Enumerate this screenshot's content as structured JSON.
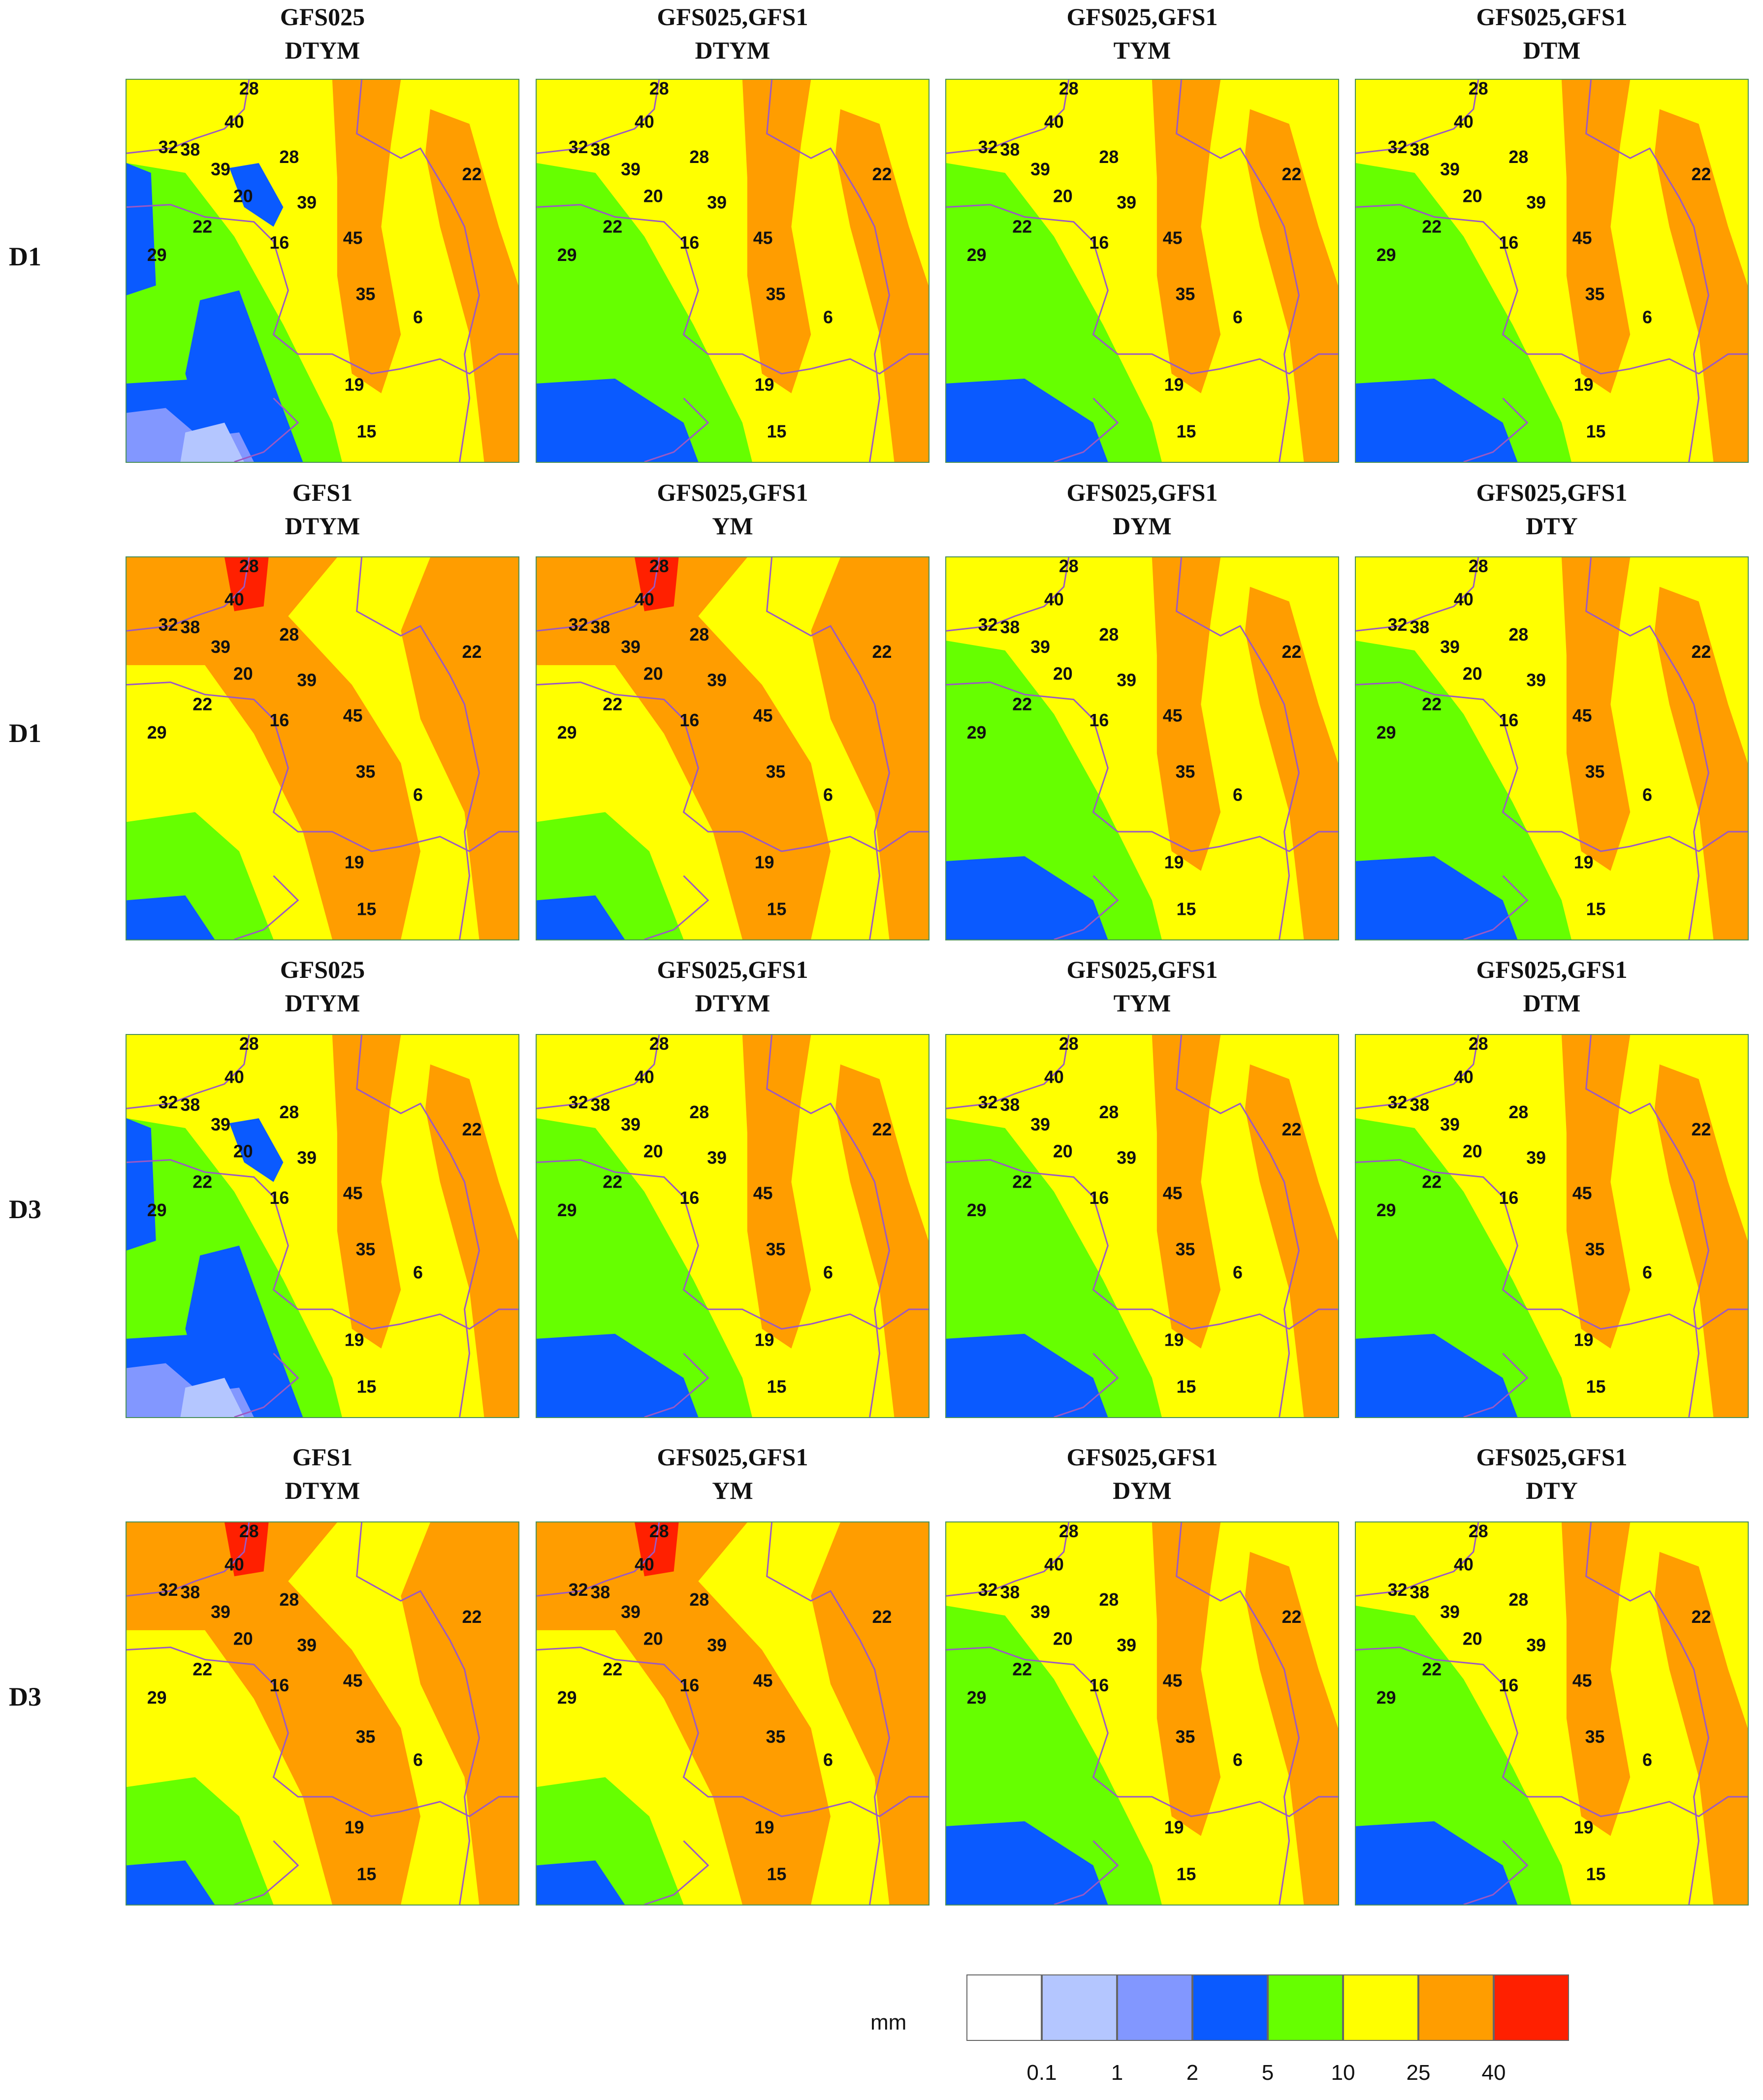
{
  "rows": [
    {
      "label": "D1",
      "panels": [
        {
          "line1": "GFS025",
          "line2": "DTYM",
          "pattern": "wet"
        },
        {
          "line1": "GFS025,GFS1",
          "line2": "DTYM",
          "pattern": "mid"
        },
        {
          "line1": "GFS025,GFS1",
          "line2": "TYM",
          "pattern": "mid"
        },
        {
          "line1": "GFS025,GFS1",
          "line2": "DTM",
          "pattern": "mid"
        }
      ]
    },
    {
      "label": "D1",
      "panels": [
        {
          "line1": "GFS1",
          "line2": "DTYM",
          "pattern": "hot"
        },
        {
          "line1": "GFS025,GFS1",
          "line2": "YM",
          "pattern": "hot"
        },
        {
          "line1": "GFS025,GFS1",
          "line2": "DYM",
          "pattern": "mid"
        },
        {
          "line1": "GFS025,GFS1",
          "line2": "DTY",
          "pattern": "mid"
        }
      ]
    },
    {
      "label": "D3",
      "panels": [
        {
          "line1": "GFS025",
          "line2": "DTYM",
          "pattern": "wet"
        },
        {
          "line1": "GFS025,GFS1",
          "line2": "DTYM",
          "pattern": "mid"
        },
        {
          "line1": "GFS025,GFS1",
          "line2": "TYM",
          "pattern": "mid"
        },
        {
          "line1": "GFS025,GFS1",
          "line2": "DTM",
          "pattern": "mid"
        }
      ]
    },
    {
      "label": "D3",
      "panels": [
        {
          "line1": "GFS1",
          "line2": "DTYM",
          "pattern": "hot"
        },
        {
          "line1": "GFS025,GFS1",
          "line2": "YM",
          "pattern": "hot"
        },
        {
          "line1": "GFS025,GFS1",
          "line2": "DYM",
          "pattern": "mid"
        },
        {
          "line1": "GFS025,GFS1",
          "line2": "DTY",
          "pattern": "mid"
        }
      ]
    }
  ],
  "station_labels": [
    "28",
    "40",
    "32",
    "38",
    "39",
    "28",
    "20",
    "39",
    "22",
    "16",
    "45",
    "29",
    "35",
    "6",
    "22",
    "19",
    "15"
  ],
  "legend": {
    "unit": "mm",
    "colors": [
      "#ffffff",
      "#b4c6ff",
      "#8297ff",
      "#0a5aff",
      "#66ff00",
      "#ffff00",
      "#ff9d00",
      "#ff2000"
    ],
    "ticks": [
      "0.1",
      "1",
      "2",
      "5",
      "10",
      "25",
      "40"
    ]
  }
}
